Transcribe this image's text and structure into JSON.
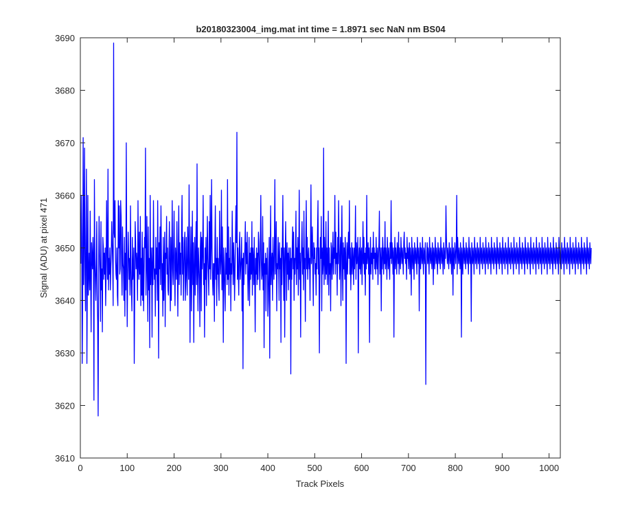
{
  "chart_data": {
    "type": "line",
    "title": "b20180323004_img.mat int time = 1.8971 sec  NaN nm BS04",
    "xlabel": "Track Pixels",
    "ylabel": "Signal (ADU) at pixel 471",
    "xlim": [
      0,
      1024
    ],
    "ylim": [
      3610,
      3690
    ],
    "xticks": [
      0,
      100,
      200,
      300,
      400,
      500,
      600,
      700,
      800,
      900,
      1000
    ],
    "yticks": [
      3610,
      3620,
      3630,
      3640,
      3650,
      3660,
      3670,
      3680,
      3690
    ],
    "grid": false,
    "legend": "none",
    "series_color": "#0000ff",
    "series": [
      {
        "x_start": 1,
        "x_step": 1,
        "values": [
          3647,
          3660,
          3652,
          3628,
          3641,
          3671,
          3643,
          3652,
          3669,
          3645,
          3638,
          3652,
          3665,
          3628,
          3644,
          3660,
          3641,
          3645,
          3649,
          3642,
          3657,
          3645,
          3634,
          3651,
          3648,
          3646,
          3652,
          3648,
          3621,
          3663,
          3648,
          3644,
          3640,
          3647,
          3655,
          3641,
          3636,
          3618,
          3646,
          3656,
          3649,
          3645,
          3636,
          3655,
          3642,
          3646,
          3634,
          3652,
          3650,
          3644,
          3649,
          3645,
          3650,
          3639,
          3645,
          3659,
          3650,
          3644,
          3665,
          3642,
          3648,
          3645,
          3650,
          3642,
          3646,
          3649,
          3655,
          3651,
          3647,
          3639,
          3689,
          3653,
          3652,
          3659,
          3648,
          3645,
          3644,
          3650,
          3641,
          3639,
          3659,
          3650,
          3658,
          3645,
          3646,
          3659,
          3656,
          3647,
          3641,
          3654,
          3647,
          3646,
          3640,
          3652,
          3637,
          3649,
          3642,
          3670,
          3648,
          3635,
          3645,
          3653,
          3649,
          3644,
          3648,
          3641,
          3658,
          3646,
          3642,
          3638,
          3652,
          3644,
          3646,
          3650,
          3628,
          3641,
          3655,
          3651,
          3646,
          3649,
          3647,
          3640,
          3659,
          3647,
          3644,
          3653,
          3645,
          3656,
          3639,
          3648,
          3641,
          3653,
          3640,
          3650,
          3638,
          3645,
          3652,
          3650,
          3669,
          3641,
          3646,
          3656,
          3645,
          3636,
          3654,
          3642,
          3648,
          3631,
          3660,
          3643,
          3650,
          3647,
          3633,
          3650,
          3643,
          3659,
          3647,
          3644,
          3646,
          3637,
          3652,
          3645,
          3650,
          3640,
          3659,
          3647,
          3629,
          3651,
          3646,
          3654,
          3643,
          3658,
          3649,
          3642,
          3647,
          3637,
          3652,
          3640,
          3646,
          3653,
          3635,
          3649,
          3648,
          3656,
          3645,
          3650,
          3642,
          3641,
          3649,
          3655,
          3646,
          3638,
          3652,
          3640,
          3648,
          3659,
          3646,
          3643,
          3650,
          3657,
          3645,
          3639,
          3650,
          3648,
          3644,
          3655,
          3646,
          3637,
          3649,
          3658,
          3643,
          3651,
          3645,
          3649,
          3641,
          3653,
          3660,
          3645,
          3652,
          3640,
          3645,
          3651,
          3653,
          3640,
          3644,
          3652,
          3645,
          3641,
          3654,
          3649,
          3644,
          3662,
          3649,
          3632,
          3647,
          3654,
          3638,
          3646,
          3657,
          3643,
          3651,
          3632,
          3646,
          3652,
          3641,
          3648,
          3655,
          3643,
          3666,
          3645,
          3638,
          3650,
          3647,
          3644,
          3635,
          3650,
          3653,
          3638,
          3652,
          3646,
          3649,
          3660,
          3643,
          3647,
          3633,
          3650,
          3644,
          3652,
          3639,
          3647,
          3656,
          3648,
          3645,
          3641,
          3655,
          3646,
          3660,
          3644,
          3650,
          3663,
          3650,
          3644,
          3641,
          3647,
          3647,
          3636,
          3650,
          3658,
          3644,
          3648,
          3639,
          3652,
          3645,
          3648,
          3643,
          3640,
          3657,
          3649,
          3645,
          3648,
          3661,
          3642,
          3654,
          3645,
          3632,
          3650,
          3647,
          3642,
          3638,
          3650,
          3645,
          3649,
          3643,
          3663,
          3644,
          3654,
          3641,
          3648,
          3645,
          3652,
          3638,
          3647,
          3645,
          3657,
          3649,
          3643,
          3651,
          3648,
          3640,
          3645,
          3652,
          3658,
          3651,
          3672,
          3644,
          3650,
          3645,
          3641,
          3650,
          3653,
          3644,
          3646,
          3648,
          3652,
          3638,
          3648,
          3627,
          3649,
          3643,
          3648,
          3650,
          3655,
          3645,
          3651,
          3647,
          3653,
          3645,
          3640,
          3646,
          3652,
          3639,
          3649,
          3644,
          3650,
          3645,
          3655,
          3641,
          3650,
          3648,
          3643,
          3652,
          3645,
          3634,
          3648,
          3645,
          3650,
          3643,
          3649,
          3644,
          3653,
          3651,
          3646,
          3642,
          3650,
          3660,
          3648,
          3644,
          3645,
          3656,
          3642,
          3651,
          3631,
          3647,
          3645,
          3649,
          3638,
          3648,
          3645,
          3650,
          3637,
          3640,
          3647,
          3652,
          3629,
          3646,
          3658,
          3643,
          3647,
          3649,
          3640,
          3652,
          3647,
          3644,
          3650,
          3663,
          3645,
          3648,
          3655,
          3638,
          3647,
          3646,
          3652,
          3647,
          3640,
          3651,
          3646,
          3648,
          3632,
          3650,
          3643,
          3650,
          3660,
          3647,
          3640,
          3650,
          3633,
          3647,
          3655,
          3648,
          3640,
          3651,
          3645,
          3649,
          3642,
          3650,
          3644,
          3646,
          3650,
          3626,
          3648,
          3644,
          3650,
          3654,
          3646,
          3653,
          3640,
          3648,
          3645,
          3649,
          3657,
          3643,
          3650,
          3646,
          3652,
          3641,
          3648,
          3661,
          3644,
          3649,
          3633,
          3647,
          3650,
          3655,
          3645,
          3650,
          3642,
          3657,
          3646,
          3648,
          3636,
          3651,
          3659,
          3646,
          3652,
          3644,
          3648,
          3650,
          3646,
          3648,
          3640,
          3650,
          3662,
          3647,
          3649,
          3654,
          3646,
          3639,
          3651,
          3648,
          3650,
          3645,
          3647,
          3641,
          3650,
          3646,
          3653,
          3659,
          3645,
          3650,
          3630,
          3644,
          3652,
          3648,
          3656,
          3638,
          3650,
          3645,
          3647,
          3669,
          3643,
          3652,
          3648,
          3644,
          3655,
          3645,
          3650,
          3643,
          3648,
          3657,
          3641,
          3650,
          3645,
          3647,
          3638,
          3651,
          3650,
          3644,
          3648,
          3653,
          3645,
          3650,
          3648,
          3660,
          3645,
          3653,
          3647,
          3649,
          3641,
          3652,
          3647,
          3659,
          3650,
          3644,
          3648,
          3652,
          3639,
          3650,
          3658,
          3647,
          3640,
          3651,
          3646,
          3650,
          3644,
          3652,
          3649,
          3628,
          3647,
          3651,
          3645,
          3649,
          3653,
          3648,
          3659,
          3645,
          3650,
          3642,
          3647,
          3651,
          3645,
          3650,
          3648,
          3643,
          3650,
          3646,
          3649,
          3658,
          3644,
          3651,
          3647,
          3649,
          3652,
          3630,
          3648,
          3650,
          3646,
          3652,
          3645,
          3649,
          3650,
          3643,
          3648,
          3655,
          3647,
          3652,
          3645,
          3649,
          3641,
          3650,
          3646,
          3660,
          3647,
          3649,
          3651,
          3645,
          3650,
          3632,
          3648,
          3652,
          3645,
          3649,
          3647,
          3650,
          3644,
          3653,
          3648,
          3650,
          3646,
          3649,
          3645,
          3652,
          3648,
          3646,
          3650,
          3643,
          3648,
          3651,
          3657,
          3645,
          3650,
          3648,
          3638,
          3650,
          3646,
          3652,
          3649,
          3645,
          3650,
          3647,
          3655,
          3646,
          3650,
          3648,
          3644,
          3652,
          3649,
          3646,
          3650,
          3647,
          3644,
          3651,
          3648,
          3659,
          3647,
          3651,
          3649,
          3645,
          3650,
          3633,
          3648,
          3652,
          3646,
          3650,
          3648,
          3645,
          3651,
          3649,
          3647,
          3653,
          3645,
          3650,
          3648,
          3646,
          3652,
          3649,
          3647,
          3650,
          3648,
          3645,
          3651,
          3653,
          3648,
          3650,
          3647,
          3649,
          3644,
          3652,
          3648,
          3650,
          3646,
          3649,
          3651,
          3645,
          3650,
          3648,
          3641,
          3652,
          3649,
          3646,
          3650,
          3648,
          3644,
          3651,
          3649,
          3647,
          3650,
          3648,
          3645,
          3652,
          3649,
          3647,
          3650,
          3638,
          3648,
          3651,
          3646,
          3650,
          3649,
          3647,
          3652,
          3648,
          3645,
          3650,
          3649,
          3647,
          3651,
          3624,
          3646,
          3649,
          3651,
          3647,
          3650,
          3648,
          3645,
          3652,
          3649,
          3647,
          3650,
          3648,
          3646,
          3651,
          3649,
          3643,
          3650,
          3648,
          3646,
          3652,
          3649,
          3647,
          3650,
          3648,
          3645,
          3651,
          3649,
          3647,
          3650,
          3648,
          3646,
          3652,
          3649,
          3647,
          3650,
          3648,
          3645,
          3651,
          3649,
          3646,
          3650,
          3648,
          3658,
          3652,
          3649,
          3647,
          3650,
          3648,
          3646,
          3651,
          3649,
          3647,
          3650,
          3648,
          3645,
          3652,
          3649,
          3641,
          3650,
          3648,
          3646,
          3651,
          3649,
          3647,
          3650,
          3660,
          3645,
          3652,
          3649,
          3647,
          3650,
          3648,
          3646,
          3651,
          3649,
          3633,
          3650,
          3648,
          3645,
          3652,
          3649,
          3647,
          3650,
          3648,
          3646,
          3651,
          3649,
          3647,
          3650,
          3648,
          3645,
          3652,
          3649,
          3647,
          3650,
          3648,
          3636,
          3651,
          3649,
          3647,
          3650,
          3648,
          3645,
          3652,
          3649,
          3647,
          3650,
          3648,
          3646,
          3651,
          3649,
          3647,
          3650,
          3648,
          3645,
          3652,
          3649,
          3647,
          3650,
          3648,
          3646,
          3651,
          3649,
          3647,
          3650,
          3648,
          3645,
          3652,
          3649,
          3647,
          3650,
          3648,
          3646,
          3651,
          3649,
          3647,
          3650,
          3648,
          3645,
          3652,
          3649,
          3647,
          3650,
          3648,
          3646,
          3651,
          3649,
          3647,
          3650,
          3648,
          3645,
          3652,
          3649,
          3647,
          3650,
          3648,
          3646,
          3651,
          3649,
          3647,
          3650,
          3648,
          3645,
          3652,
          3649,
          3647,
          3650,
          3648,
          3646,
          3651,
          3649,
          3647,
          3650,
          3648,
          3645,
          3652,
          3649,
          3647,
          3650,
          3648,
          3646,
          3651,
          3649,
          3647,
          3650,
          3648,
          3645,
          3652,
          3649,
          3647,
          3650,
          3648,
          3646,
          3651,
          3649,
          3647,
          3650,
          3648,
          3645,
          3652,
          3649,
          3647,
          3650,
          3648,
          3646,
          3651,
          3649,
          3647,
          3650,
          3648,
          3645,
          3652,
          3649,
          3647,
          3650,
          3648,
          3646,
          3651,
          3649,
          3647,
          3650,
          3648,
          3645,
          3652,
          3649,
          3647,
          3650,
          3648,
          3646,
          3651,
          3649,
          3647,
          3650,
          3648,
          3645,
          3652,
          3649,
          3647,
          3650,
          3648,
          3646,
          3651,
          3649,
          3647,
          3650,
          3648,
          3645,
          3652,
          3649,
          3647,
          3650,
          3648,
          3646,
          3651,
          3649,
          3647,
          3650,
          3648,
          3645,
          3652,
          3649,
          3647,
          3650,
          3648,
          3646,
          3651,
          3649,
          3647,
          3650,
          3648,
          3645,
          3652,
          3649,
          3647,
          3650,
          3648,
          3646,
          3651,
          3649,
          3647,
          3650,
          3648,
          3645,
          3652,
          3649,
          3647,
          3650,
          3648,
          3646,
          3651,
          3649,
          3647,
          3650,
          3648,
          3645,
          3652,
          3649,
          3647,
          3650,
          3648,
          3646,
          3651,
          3649,
          3647,
          3650,
          3648,
          3645,
          3652,
          3649,
          3647,
          3650,
          3648,
          3646,
          3651,
          3649,
          3647,
          3650,
          3648,
          3645,
          3652,
          3649,
          3647,
          3650,
          3648,
          3646,
          3651,
          3649,
          3647,
          3650,
          3648,
          3645,
          3652,
          3649,
          3647,
          3650,
          3648,
          3646,
          3651,
          3649,
          3647,
          3650,
          3648,
          3645,
          3652,
          3649,
          3647,
          3650,
          3648,
          3646,
          3651,
          3649,
          3647,
          3650
        ]
      }
    ]
  }
}
